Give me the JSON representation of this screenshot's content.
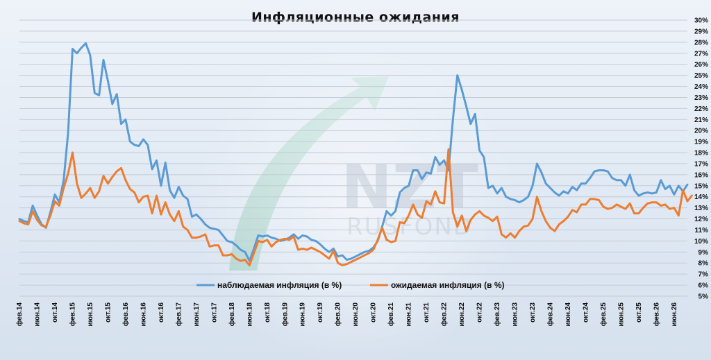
{
  "chart_data": {
    "type": "line",
    "title": "Инфляционные ожидания",
    "xlabel": "",
    "ylabel": "",
    "y_unit": "%",
    "ylim": [
      5,
      30
    ],
    "y_ticks": [
      "5%",
      "6%",
      "7%",
      "8%",
      "9%",
      "10%",
      "11%",
      "12%",
      "13%",
      "14%",
      "15%",
      "16%",
      "17%",
      "18%",
      "19%",
      "20%",
      "21%",
      "22%",
      "23%",
      "24%",
      "25%",
      "26%",
      "27%",
      "28%",
      "29%",
      "30%"
    ],
    "x_ticks": [
      "фев.14",
      "июн.14",
      "окт.14",
      "фев.15",
      "июн.15",
      "окт.15",
      "фев.16",
      "июн.16",
      "окт.16",
      "фев.17",
      "июн.17",
      "окт.17",
      "фев.18",
      "июн.18",
      "окт.18",
      "фев.19",
      "июн.19",
      "окт.19",
      "фев.20",
      "июн.20",
      "окт.20",
      "фев.21",
      "июн.21",
      "окт.21",
      "фев.22",
      "июн.22",
      "окт.22",
      "фев.23",
      "июн.23",
      "окт.23",
      "фев.24",
      "июн.24",
      "окт.24",
      "фев.25",
      "июн.25",
      "окт.25",
      "фев.26",
      "июн.26"
    ],
    "grid": "horizontal",
    "legend_position": "bottom-center",
    "series": [
      {
        "name": "наблюдаемая инфляция (в %)",
        "color": "#5b9bd5",
        "values": [
          12.0,
          11.8,
          11.7,
          13.2,
          12.3,
          11.5,
          11.2,
          12.6,
          14.2,
          13.5,
          15.5,
          19.8,
          27.4,
          27.0,
          27.5,
          27.9,
          26.8,
          23.4,
          23.2,
          26.4,
          24.5,
          22.4,
          23.3,
          20.6,
          21.0,
          19.0,
          18.7,
          18.6,
          19.2,
          18.7,
          16.5,
          17.3,
          15.0,
          17.1,
          14.6,
          13.9,
          14.9,
          14.1,
          13.8,
          12.2,
          12.4,
          12.0,
          11.5,
          11.2,
          11.1,
          11.0,
          10.5,
          10.0,
          9.9,
          9.6,
          9.2,
          9.0,
          8.2,
          9.3,
          10.5,
          10.4,
          10.5,
          10.3,
          10.2,
          10.0,
          10.1,
          10.3,
          10.6,
          10.2,
          10.5,
          10.4,
          10.1,
          10.0,
          9.7,
          9.3,
          9.0,
          9.3,
          8.6,
          8.7,
          8.3,
          8.4,
          8.6,
          8.8,
          9.0,
          9.1,
          9.4,
          10.0,
          11.3,
          12.7,
          12.3,
          12.7,
          14.4,
          14.8,
          15.0,
          16.4,
          16.4,
          15.6,
          16.2,
          16.1,
          17.6,
          16.9,
          17.3,
          16.4,
          21.0,
          25.0,
          23.7,
          22.2,
          20.6,
          21.5,
          18.2,
          17.6,
          14.8,
          15.0,
          14.3,
          14.8,
          14.0,
          13.8,
          13.7,
          13.5,
          13.7,
          14.0,
          15.0,
          17.0,
          16.2,
          15.2,
          14.8,
          14.4,
          14.1,
          14.5,
          14.3,
          14.9,
          14.6,
          15.2,
          15.2,
          15.7,
          16.3,
          16.4,
          16.4,
          16.3,
          15.7,
          15.5,
          15.5,
          15.0,
          16.0,
          14.6,
          14.1,
          14.3,
          14.4,
          14.3,
          14.4,
          15.5,
          14.7,
          15.0,
          14.2,
          15.0,
          14.5,
          15.1
        ]
      },
      {
        "name": "ожидаемая инфляция (в %)",
        "color": "#ed7d31",
        "values": [
          11.8,
          11.6,
          11.5,
          12.7,
          11.9,
          11.4,
          11.3,
          12.3,
          13.6,
          13.2,
          14.8,
          16.1,
          18.0,
          15.2,
          13.9,
          14.3,
          14.8,
          13.9,
          14.5,
          15.9,
          15.2,
          15.8,
          16.3,
          16.6,
          15.5,
          14.7,
          14.4,
          13.5,
          14.0,
          14.1,
          12.5,
          14.1,
          12.4,
          13.5,
          12.4,
          11.8,
          12.7,
          11.3,
          11.0,
          10.3,
          10.3,
          10.4,
          10.6,
          9.5,
          9.6,
          9.6,
          8.7,
          8.7,
          8.8,
          8.4,
          8.2,
          8.3,
          7.8,
          8.9,
          10.0,
          9.9,
          10.1,
          9.5,
          9.9,
          10.1,
          10.2,
          10.1,
          10.4,
          9.2,
          9.3,
          9.2,
          9.4,
          9.2,
          9.0,
          8.7,
          8.4,
          9.1,
          8.0,
          7.8,
          7.9,
          8.1,
          8.3,
          8.5,
          8.7,
          8.9,
          9.2,
          10.1,
          11.2,
          10.1,
          9.9,
          10.0,
          11.7,
          11.6,
          12.3,
          13.3,
          12.4,
          12.1,
          13.6,
          13.3,
          14.5,
          13.5,
          13.4,
          18.3,
          12.6,
          11.3,
          12.3,
          10.9,
          11.9,
          12.4,
          12.7,
          12.3,
          12.1,
          11.8,
          12.2,
          10.6,
          10.3,
          10.7,
          10.3,
          10.9,
          11.3,
          11.4,
          12.0,
          14.0,
          12.7,
          11.8,
          11.2,
          10.9,
          11.5,
          11.8,
          12.2,
          12.8,
          12.6,
          13.3,
          13.3,
          13.8,
          13.8,
          13.7,
          13.1,
          12.9,
          13.0,
          13.3,
          13.1,
          12.9,
          13.4,
          12.5,
          12.5,
          13.0,
          13.4,
          13.5,
          13.5,
          13.2,
          13.3,
          12.9,
          13.0,
          12.3,
          14.6,
          13.6,
          14.1
        ]
      }
    ]
  }
}
